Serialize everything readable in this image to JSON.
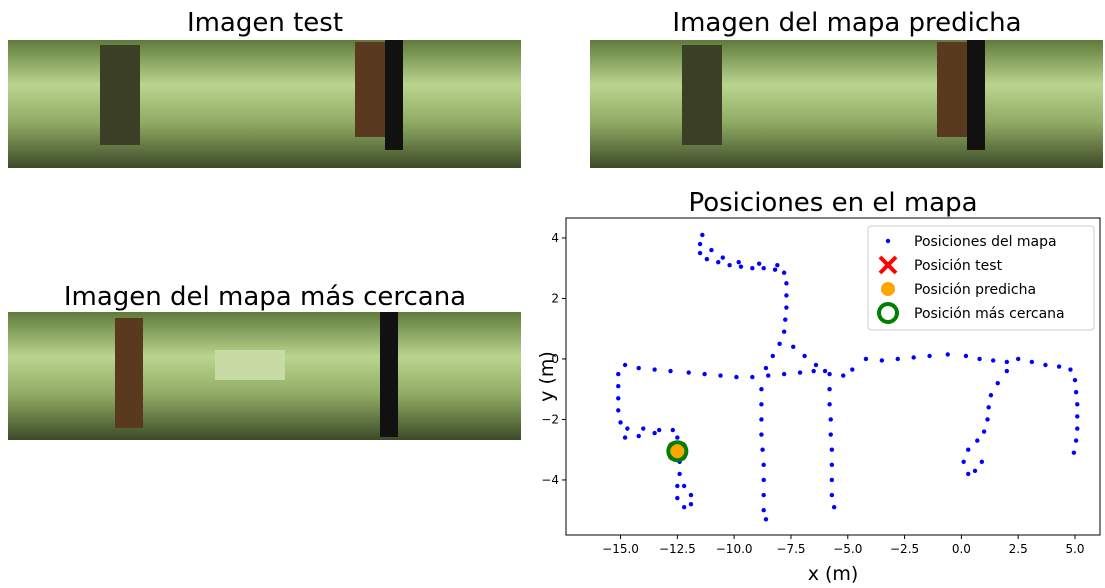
{
  "panels": [
    {
      "title": "Imagen test"
    },
    {
      "title": "Imagen del mapa predicha"
    },
    {
      "title": "Imagen del mapa más cercana"
    }
  ],
  "chart_data": {
    "type": "scatter",
    "title": "Posiciones en el mapa",
    "xlabel": "x (m)",
    "ylabel": "y (m)",
    "xlim": [
      -17.4,
      6.1
    ],
    "ylim": [
      -5.82,
      4.66
    ],
    "xticks": [
      {
        "value": -15,
        "label": "−15.0"
      },
      {
        "value": -12.5,
        "label": "−12.5"
      },
      {
        "value": -10,
        "label": "−10.0"
      },
      {
        "value": -7.5,
        "label": "−7.5"
      },
      {
        "value": -5,
        "label": "−5.0"
      },
      {
        "value": -2.5,
        "label": "−2.5"
      },
      {
        "value": 0,
        "label": "0.0"
      },
      {
        "value": 2.5,
        "label": "2.5"
      },
      {
        "value": 5,
        "label": "5.0"
      }
    ],
    "yticks": [
      {
        "value": -4,
        "label": "−4"
      },
      {
        "value": -2,
        "label": "−2"
      },
      0,
      2,
      4
    ],
    "legend": "upper right",
    "series": [
      {
        "name": "Posiciones del mapa",
        "color": "#0000ff",
        "marker": "dot",
        "x": [
          -11.4,
          -11.5,
          -11.5,
          -11.2,
          -10.7,
          -10.2,
          -9.7,
          -9.2,
          -8.7,
          -8.2,
          -7.8,
          -7.7,
          -7.7,
          -7.7,
          -7.75,
          -7.8,
          -8.0,
          -8.3,
          -8.6,
          -7.4,
          -6.9,
          -6.4,
          -6.0,
          -11.0,
          -10.5,
          -9.8,
          -8.9,
          -8.1,
          -14.8,
          -14.2,
          -13.5,
          -12.8,
          -12.0,
          -11.3,
          -10.6,
          -9.9,
          -9.2,
          -8.5,
          -7.8,
          -7.1,
          -6.5,
          -5.8,
          -5.2,
          -4.8,
          -4.2,
          -3.5,
          -2.8,
          -2.1,
          -1.4,
          -0.6,
          -15.1,
          -15.1,
          -15.1,
          -15.1,
          -15.0,
          -14.7,
          -14.0,
          -13.3,
          -12.7,
          -12.5,
          -12.5,
          -12.4,
          -12.4,
          -12.2,
          -11.9,
          -11.9,
          -12.2,
          -12.5,
          -12.5,
          -14.8,
          -14.2,
          -13.5,
          -8.8,
          -8.8,
          -8.8,
          -8.8,
          -8.75,
          -8.7,
          -8.7,
          -8.7,
          -8.7,
          -8.6,
          -5.8,
          -5.8,
          -5.75,
          -5.75,
          -5.7,
          -5.7,
          -5.7,
          -5.7,
          -5.6,
          0.2,
          0.8,
          1.4,
          2.0,
          2.5,
          3.1,
          3.7,
          4.3,
          4.8,
          5.0,
          5.05,
          5.1,
          5.1,
          5.1,
          5.05,
          4.95,
          2.0,
          1.6,
          1.3,
          1.2,
          1.15,
          1.0,
          0.7,
          0.3,
          0.1,
          0.3,
          0.6,
          0.9
        ],
        "y": [
          4.1,
          3.8,
          3.5,
          3.3,
          3.2,
          3.1,
          3.05,
          3.0,
          3.0,
          2.95,
          2.85,
          2.5,
          2.1,
          1.7,
          1.3,
          0.9,
          0.5,
          0.1,
          -0.3,
          0.4,
          0.1,
          -0.2,
          -0.4,
          3.6,
          3.35,
          3.2,
          3.15,
          3.1,
          -0.2,
          -0.3,
          -0.35,
          -0.4,
          -0.45,
          -0.5,
          -0.55,
          -0.6,
          -0.6,
          -0.55,
          -0.5,
          -0.45,
          -0.4,
          -0.5,
          -0.55,
          -0.35,
          0.0,
          -0.05,
          0.0,
          0.05,
          0.1,
          0.15,
          -0.5,
          -0.9,
          -1.3,
          -1.7,
          -2.1,
          -2.3,
          -2.3,
          -2.35,
          -2.35,
          -2.6,
          -3.0,
          -3.4,
          -3.8,
          -4.2,
          -4.5,
          -4.8,
          -4.9,
          -4.6,
          -4.2,
          -2.6,
          -2.55,
          -2.45,
          -1.0,
          -1.5,
          -2.0,
          -2.5,
          -3.0,
          -3.5,
          -4.0,
          -4.5,
          -5.0,
          -5.3,
          -1.0,
          -1.5,
          -2.0,
          -2.5,
          -3.0,
          -3.5,
          -4.0,
          -4.5,
          -4.9,
          0.1,
          0.0,
          -0.05,
          -0.1,
          0.0,
          -0.1,
          -0.2,
          -0.25,
          -0.35,
          -0.7,
          -1.1,
          -1.5,
          -1.9,
          -2.3,
          -2.7,
          -3.1,
          -0.4,
          -0.8,
          -1.2,
          -1.6,
          -2.0,
          -2.4,
          -2.7,
          -3.0,
          -3.4,
          -3.8,
          -3.7,
          -3.4
        ]
      },
      {
        "name": "Posición test",
        "color": "#ff0000",
        "marker": "x",
        "x": [
          -12.5
        ],
        "y": [
          -3.05
        ]
      },
      {
        "name": "Posición predicha",
        "color": "#ffa500",
        "marker": "disc",
        "x": [
          -12.5
        ],
        "y": [
          -3.05
        ]
      },
      {
        "name": "Posición más cercana",
        "color": "#008000",
        "marker": "ring",
        "x": [
          -12.5
        ],
        "y": [
          -3.05
        ]
      }
    ]
  }
}
